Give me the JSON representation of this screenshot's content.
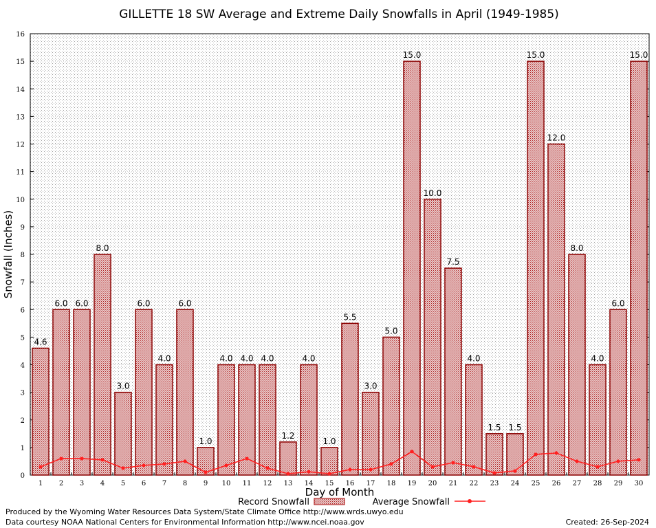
{
  "chart_data": {
    "type": "bar",
    "title": "GILLETTE 18 SW Average and Extreme Daily Snowfalls in April (1949-1985)",
    "xlabel": "Day of Month",
    "ylabel": "Snowfall (Inches)",
    "ylim": [
      0,
      16
    ],
    "yticks": [
      0,
      1,
      2,
      3,
      4,
      5,
      6,
      7,
      8,
      9,
      10,
      11,
      12,
      13,
      14,
      15,
      16
    ],
    "categories": [
      "1",
      "2",
      "3",
      "4",
      "5",
      "6",
      "7",
      "8",
      "9",
      "10",
      "11",
      "12",
      "13",
      "14",
      "15",
      "16",
      "17",
      "18",
      "19",
      "20",
      "21",
      "22",
      "23",
      "24",
      "25",
      "26",
      "27",
      "28",
      "29",
      "30"
    ],
    "grid": true,
    "series": [
      {
        "name": "Record Snowfall",
        "type": "bar",
        "color": "#b22222",
        "values": [
          4.6,
          6.0,
          6.0,
          8.0,
          3.0,
          6.0,
          4.0,
          6.0,
          1.0,
          4.0,
          4.0,
          4.0,
          1.2,
          4.0,
          1.0,
          5.5,
          3.0,
          5.0,
          15.0,
          10.0,
          7.5,
          4.0,
          1.5,
          1.5,
          15.0,
          12.0,
          8.0,
          4.0,
          6.0,
          15.0
        ],
        "labels": [
          "4.6",
          "6.0",
          "6.0",
          "8.0",
          "3.0",
          "6.0",
          "4.0",
          "6.0",
          "1.0",
          "4.0",
          "4.0",
          "4.0",
          "1.2",
          "4.0",
          "1.0",
          "5.5",
          "3.0",
          "5.0",
          "15.0",
          "10.0",
          "7.5",
          "4.0",
          "1.5",
          "1.5",
          "15.0",
          "12.0",
          "8.0",
          "4.0",
          "6.0",
          "15.0"
        ]
      },
      {
        "name": "Average Snowfall",
        "type": "line",
        "color": "#ff2020",
        "values": [
          0.3,
          0.6,
          0.6,
          0.55,
          0.25,
          0.35,
          0.4,
          0.5,
          0.1,
          0.35,
          0.6,
          0.25,
          0.05,
          0.12,
          0.05,
          0.2,
          0.2,
          0.4,
          0.85,
          0.3,
          0.45,
          0.3,
          0.08,
          0.15,
          0.75,
          0.8,
          0.5,
          0.3,
          0.5,
          0.55
        ]
      }
    ],
    "legend_position": "bottom"
  },
  "footer": {
    "left_line1": "Produced by the Wyoming Water Resources Data System/State Climate Office http://www.wrds.uwyo.edu",
    "left_line2": "Data courtesy NOAA National Centers for Environmental Information http://www.ncei.noaa.gov",
    "created": "Created: 26-Sep-2024"
  }
}
